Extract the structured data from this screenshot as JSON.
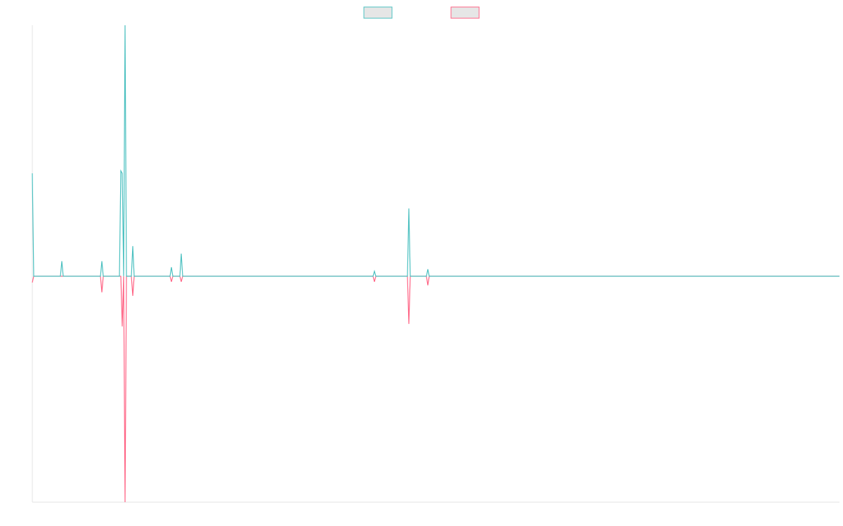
{
  "chart_data": {
    "type": "line",
    "xlim": [
      0,
      1149
    ],
    "ylim": [
      -0.9,
      1
    ],
    "series": [
      {
        "color": "#4bc0c0",
        "x": [
          0,
          2,
          40,
          42,
          44,
          97,
          99,
          101,
          124,
          126,
          128,
          130,
          132,
          134,
          141,
          143,
          145,
          196,
          198,
          200,
          210,
          212,
          214,
          485,
          487,
          489,
          534,
          536,
          538,
          561,
          563,
          565,
          1149
        ],
        "values": [
          0.41,
          0,
          0,
          0.06,
          0,
          0,
          0.06,
          0,
          0,
          0.42,
          0.41,
          0,
          1,
          0,
          0,
          0.12,
          0,
          0,
          0.036,
          0,
          0,
          0.09,
          0,
          0,
          0.02,
          0,
          0,
          0.27,
          0,
          0,
          0.028,
          0,
          0
        ]
      },
      {
        "color": "#ff6384",
        "x": [
          0,
          2,
          97,
          99,
          101,
          126,
          128,
          130,
          132,
          134,
          141,
          143,
          145,
          196,
          198,
          200,
          210,
          212,
          214,
          485,
          487,
          489,
          534,
          536,
          538,
          561,
          563,
          565,
          1149
        ],
        "values": [
          -0.025,
          0,
          0,
          -0.064,
          0,
          0,
          -0.2,
          0,
          -0.9,
          0,
          0,
          -0.078,
          0,
          0,
          -0.022,
          0,
          0,
          -0.022,
          0,
          0,
          -0.022,
          0,
          0,
          -0.19,
          0,
          0,
          -0.036,
          0,
          0
        ]
      }
    ]
  }
}
